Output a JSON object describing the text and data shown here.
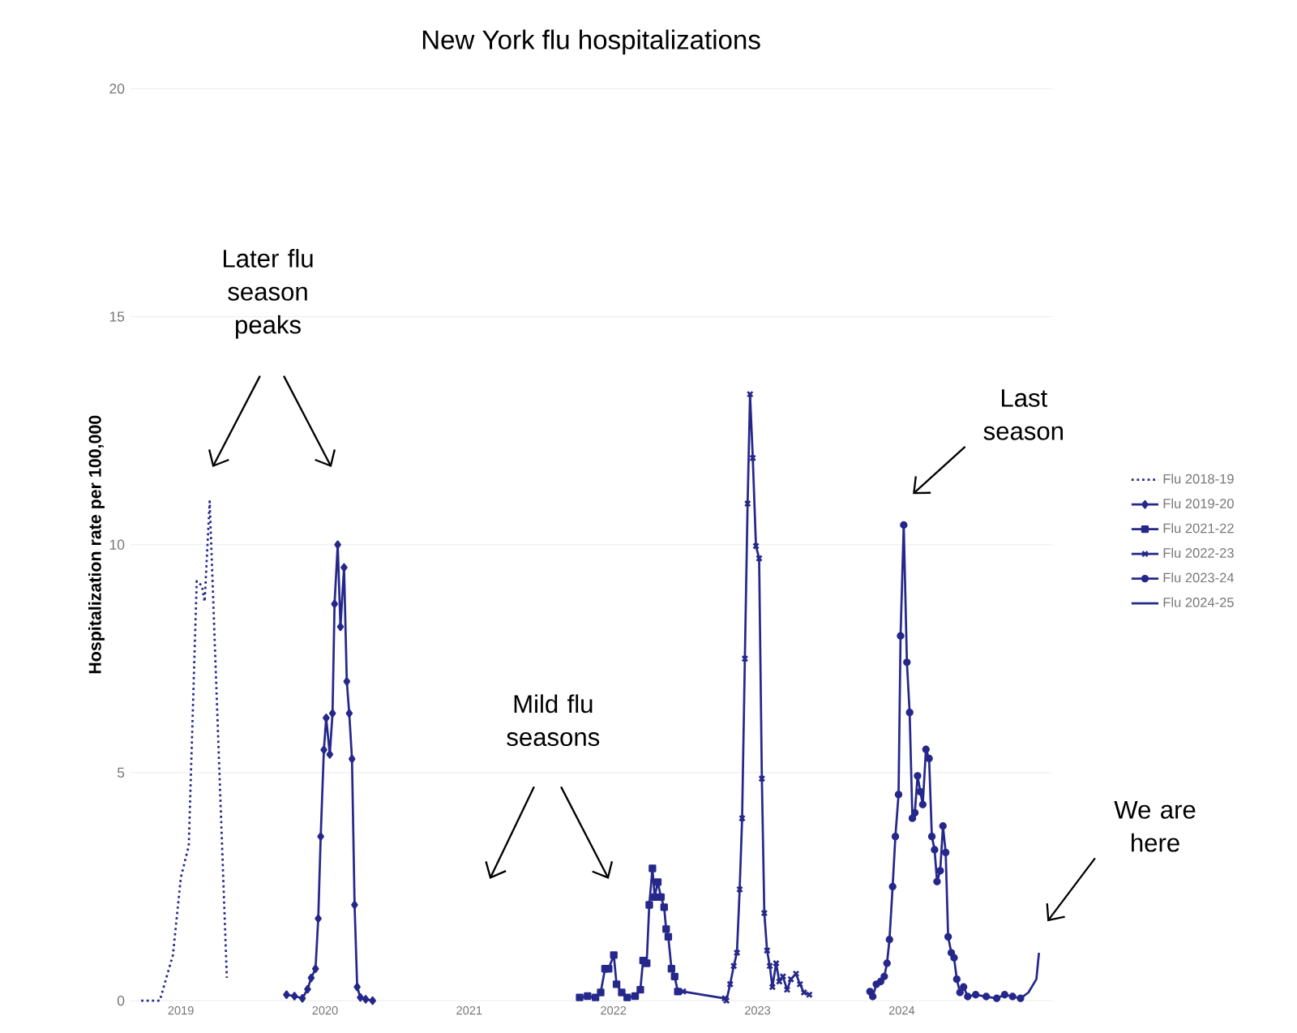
{
  "chart_data": {
    "type": "line",
    "title": "New York flu hospitalizations",
    "ylabel": "Hospitalization rate per 100,000",
    "xlim": [
      2018.65,
      2025.04
    ],
    "xticks": [
      2019,
      2020,
      2021,
      2022,
      2023,
      2024
    ],
    "ylim": [
      0,
      20
    ],
    "yticks": [
      0,
      5,
      10,
      15,
      20
    ],
    "grid": "y",
    "legend": "right",
    "annotations": [
      "Later flu season peaks",
      "Mild flu seasons",
      "Last season",
      "We are here"
    ],
    "series": [
      {
        "name": "Flu 2018-19",
        "color": "#25288a",
        "marker": "none",
        "line_style": "dotted",
        "x": [
          2018.725,
          2018.854,
          2018.945,
          2019.0,
          2019.055,
          2019.11,
          2019.146,
          2019.165,
          2019.2,
          2019.238,
          2019.319
        ],
        "values": [
          0,
          0,
          1.0,
          2.7,
          3.4,
          9.2,
          9.1,
          8.75,
          10.95,
          7.6,
          0.5
        ]
      },
      {
        "name": "Flu 2019-20",
        "color": "#25288a",
        "marker": "diamond",
        "line_style": "solid",
        "x": [
          2019.733,
          2019.788,
          2019.843,
          2019.879,
          2019.904,
          2019.934,
          2019.953,
          2019.97,
          2019.992,
          2020.008,
          2020.033,
          2020.052,
          2020.066,
          2020.088,
          2020.107,
          2020.132,
          2020.151,
          2020.168,
          2020.187,
          2020.205,
          2020.223,
          2020.245,
          2020.282,
          2020.33
        ],
        "values": [
          0.13,
          0.1,
          0.05,
          0.25,
          0.5,
          0.7,
          1.8,
          3.6,
          5.5,
          6.2,
          5.4,
          6.3,
          8.7,
          10.0,
          8.2,
          9.5,
          7.0,
          6.3,
          5.3,
          2.1,
          0.3,
          0.07,
          0.03,
          0
        ]
      },
      {
        "name": "Flu 2021-22",
        "color": "#25288a",
        "marker": "square",
        "line_style": "solid",
        "x": [
          2021.766,
          2021.821,
          2021.876,
          2021.912,
          2021.942,
          2021.967,
          2022.003,
          2022.022,
          2022.058,
          2022.096,
          2022.151,
          2022.187,
          2022.206,
          2022.231,
          2022.249,
          2022.271,
          2022.286,
          2022.308,
          2022.33,
          2022.352,
          2022.366,
          2022.381,
          2022.403,
          2022.425,
          2022.447
        ],
        "values": [
          0.07,
          0.1,
          0.07,
          0.18,
          0.7,
          0.7,
          1.0,
          0.36,
          0.18,
          0.07,
          0.1,
          0.24,
          0.88,
          0.82,
          2.1,
          2.9,
          2.27,
          2.6,
          2.27,
          2.05,
          1.57,
          1.4,
          0.7,
          0.53,
          0.2
        ]
      },
      {
        "name": "Flu 2022-23",
        "color": "#25288a",
        "marker": "cross",
        "line_style": "solid",
        "x": [
          2022.484,
          2022.773,
          2022.784,
          2022.81,
          2022.835,
          2022.857,
          2022.876,
          2022.893,
          2022.912,
          2022.931,
          2022.948,
          2022.967,
          2022.989,
          2023.011,
          2023.03,
          2023.047,
          2023.066,
          2023.085,
          2023.103,
          2023.129,
          2023.151,
          2023.176,
          2023.205,
          2023.231,
          2023.267,
          2023.294,
          2023.322,
          2023.359
        ],
        "values": [
          0.2,
          0.05,
          0,
          0.36,
          0.76,
          1.05,
          2.44,
          4.0,
          7.5,
          10.9,
          13.3,
          11.9,
          9.97,
          9.7,
          4.87,
          1.92,
          1.1,
          0.76,
          0.3,
          0.82,
          0.42,
          0.53,
          0.24,
          0.47,
          0.59,
          0.36,
          0.18,
          0.13
        ]
      },
      {
        "name": "Flu 2023-24",
        "color": "#25288a",
        "marker": "circle",
        "line_style": "solid",
        "x": [
          2023.78,
          2023.799,
          2023.824,
          2023.854,
          2023.879,
          2023.898,
          2023.915,
          2023.937,
          2023.956,
          2023.978,
          2023.992,
          2024.014,
          2024.036,
          2024.055,
          2024.074,
          2024.091,
          2024.11,
          2024.129,
          2024.146,
          2024.168,
          2024.19,
          2024.209,
          2024.228,
          2024.245,
          2024.267,
          2024.286,
          2024.305,
          2024.322,
          2024.344,
          2024.363,
          2024.382,
          2024.404,
          2024.429,
          2024.458,
          2024.513,
          2024.586,
          2024.659,
          2024.714,
          2024.769,
          2024.824
        ],
        "values": [
          0.2,
          0.09,
          0.36,
          0.42,
          0.53,
          0.82,
          1.34,
          2.5,
          3.6,
          4.52,
          8.0,
          10.43,
          7.42,
          6.32,
          4.0,
          4.12,
          4.93,
          4.58,
          4.3,
          5.51,
          5.31,
          3.6,
          3.31,
          2.61,
          2.85,
          3.83,
          3.25,
          1.4,
          1.05,
          0.94,
          0.47,
          0.18,
          0.3,
          0.09,
          0.13,
          0.09,
          0.05,
          0.13,
          0.09,
          0.05
        ]
      },
      {
        "name": "Flu 2024-25",
        "color": "#25288a",
        "marker": "none",
        "line_style": "solid",
        "x": [
          2024.824,
          2024.879,
          2024.934,
          2024.952
        ],
        "values": [
          0.05,
          0.18,
          0.47,
          1.05
        ]
      }
    ]
  }
}
